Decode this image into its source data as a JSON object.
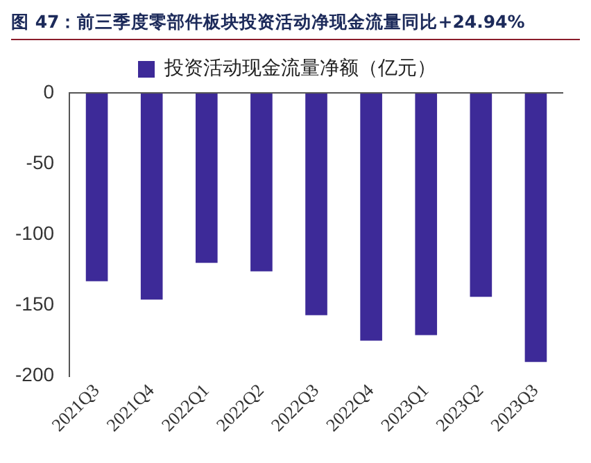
{
  "chart_data": {
    "type": "bar",
    "title": "图 47：前三季度零部件板块投资活动净现金流量同比+24.94%",
    "categories": [
      "2021Q3",
      "2021Q4",
      "2022Q1",
      "2022Q2",
      "2022Q3",
      "2022Q4",
      "2023Q1",
      "2023Q2",
      "2023Q3"
    ],
    "series": [
      {
        "name": "投资活动现金流量净额（亿元）",
        "color": "#3d2a98",
        "values": [
          -133,
          -146,
          -120,
          -126,
          -157,
          -175,
          -171,
          -144,
          -190
        ]
      }
    ],
    "ylim": [
      -200,
      0
    ],
    "yticks": [
      0,
      -50,
      -100,
      -150,
      -200
    ],
    "grid": false,
    "legend": "top"
  }
}
